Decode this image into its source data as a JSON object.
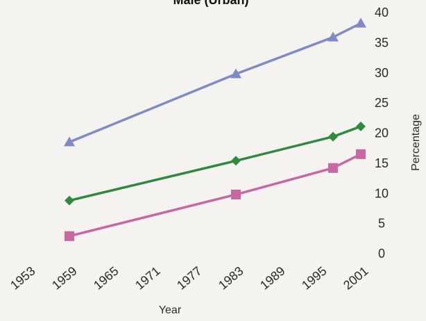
{
  "chart_data": {
    "type": "line",
    "title": "Male (Urban)",
    "xlabel": "Year",
    "ylabel": "Percentage",
    "x_ticks": [
      "1953",
      "1959",
      "1965",
      "1971",
      "1977",
      "1983",
      "1989",
      "1995",
      "2001"
    ],
    "y_ticks": [
      "0",
      "5",
      "10",
      "15",
      "20",
      "25",
      "30",
      "35",
      "40"
    ],
    "xlim": [
      1953,
      2001
    ],
    "ylim": [
      0,
      40
    ],
    "grid": false,
    "series": [
      {
        "color": "#7f8bc6",
        "marker": "triangle",
        "x": [
          1959,
          1983,
          1997,
          2001
        ],
        "y": [
          18.5,
          29.8,
          35.9,
          38.2
        ]
      },
      {
        "color": "#2e8a3e",
        "marker": "diamond",
        "x": [
          1959,
          1983,
          1997,
          2001
        ],
        "y": [
          8.8,
          15.4,
          19.4,
          21.1
        ]
      },
      {
        "color": "#c966a3",
        "marker": "square",
        "x": [
          1959,
          1983,
          1997,
          2001
        ],
        "y": [
          2.9,
          9.8,
          14.2,
          16.5
        ]
      }
    ]
  }
}
